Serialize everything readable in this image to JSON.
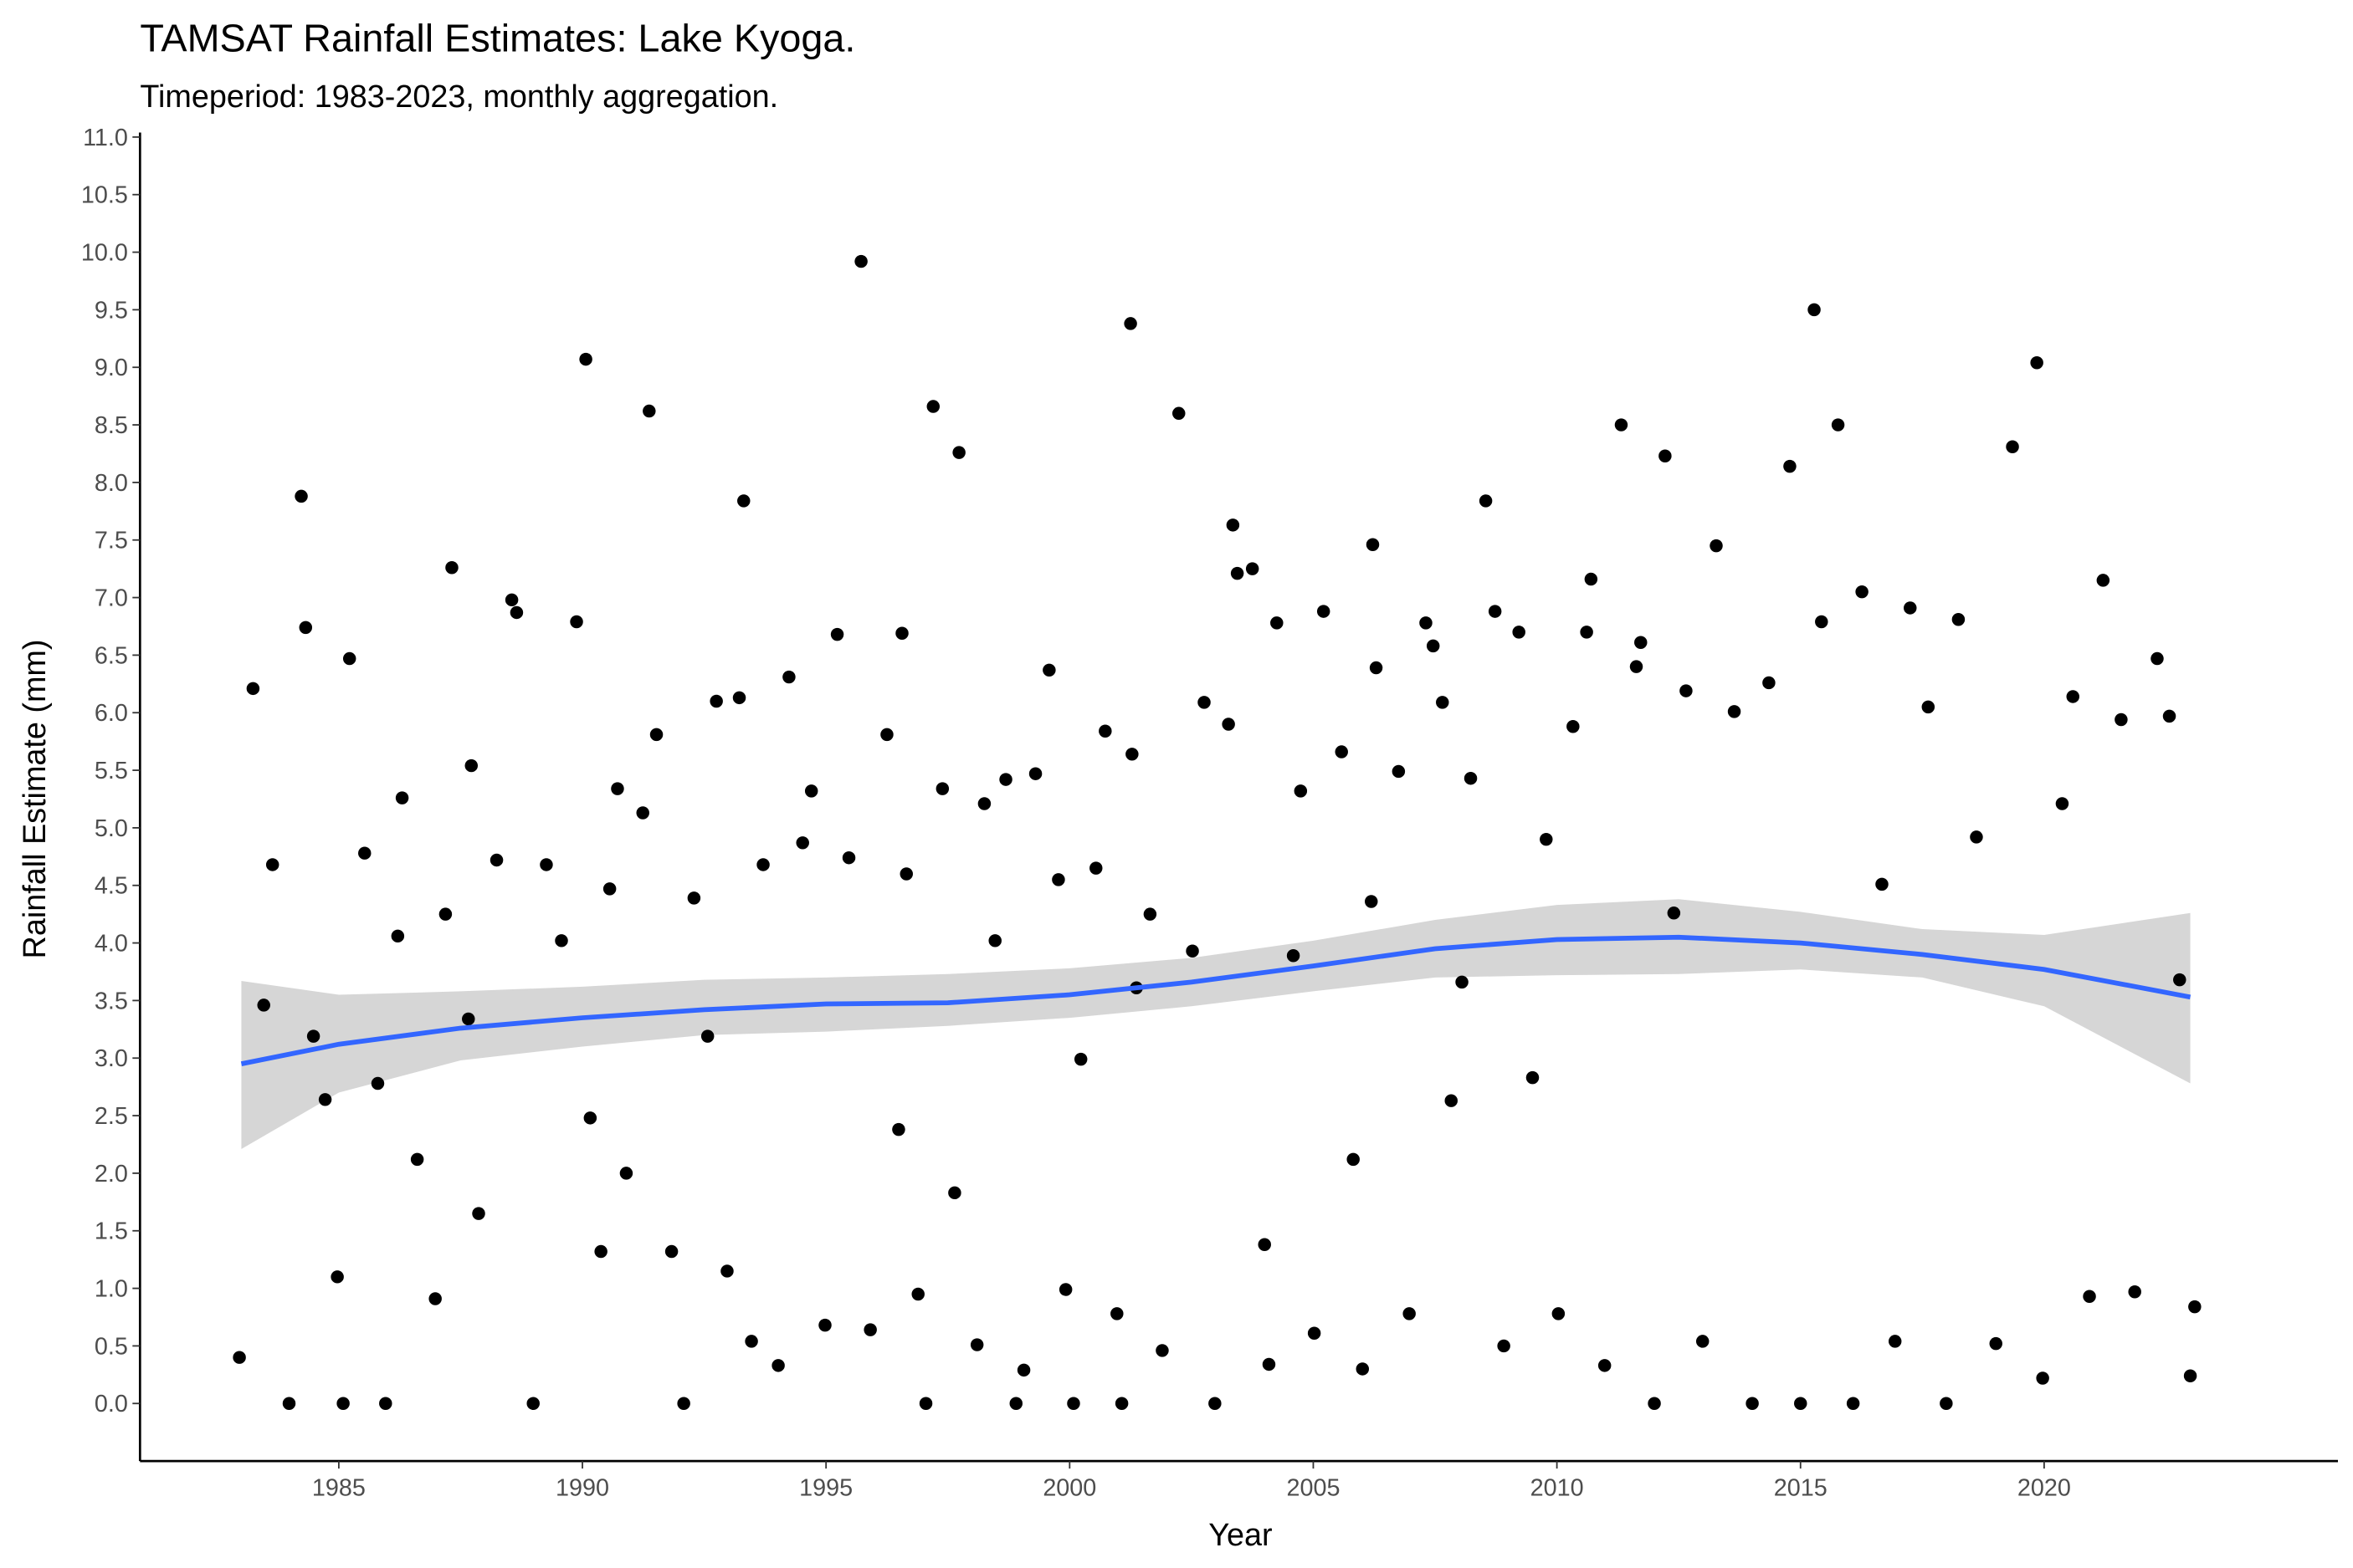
{
  "chart_data": {
    "type": "scatter",
    "title": "TAMSAT Rainfall Estimates: Lake Kyoga.",
    "subtitle": "Timeperiod: 1983-2023, monthly aggregation.",
    "x_label": "Year",
    "y_label": "Rainfall Estimate (mm)",
    "xlim": [
      1980.92,
      2026.03
    ],
    "ylim": [
      -0.5,
      11.0
    ],
    "xticks": [
      1985,
      1990,
      1995,
      2000,
      2005,
      2010,
      2015,
      2020
    ],
    "yticks": [
      {
        "value": 0,
        "label": "0.0"
      },
      0.5,
      {
        "value": 1,
        "label": "1.0"
      },
      1.5,
      {
        "value": 2,
        "label": "2.0"
      },
      2.5,
      {
        "value": 3,
        "label": "3.0"
      },
      3.5,
      {
        "value": 4,
        "label": "4.0"
      },
      4.5,
      {
        "value": 5,
        "label": "5.0"
      },
      5.5,
      {
        "value": 6,
        "label": "6.0"
      },
      6.5,
      {
        "value": 7,
        "label": "7.0"
      },
      7.5,
      {
        "value": 8,
        "label": "8.0"
      },
      8.5,
      {
        "value": 9,
        "label": "9.0"
      },
      9.5,
      {
        "value": 10,
        "label": "10.0"
      },
      10.5,
      {
        "value": 11,
        "label": "11.0"
      }
    ],
    "grid": false,
    "series": [
      {
        "color": "#000000",
        "x": [
          1982.96,
          1983.24,
          1983.46,
          1983.64,
          1983.98,
          1984.23,
          1984.32,
          1984.48,
          1984.72,
          1984.97,
          1985.09,
          1985.22,
          1985.53,
          1985.8,
          1985.96,
          1986.21,
          1986.3,
          1986.61,
          1986.98,
          1987.19,
          1987.32,
          1987.66,
          1987.72,
          1987.87,
          1988.24,
          1988.55,
          1988.65,
          1988.99,
          1989.26,
          1989.57,
          1989.88,
          1990.07,
          1990.16,
          1990.38,
          1990.56,
          1990.72,
          1990.9,
          1991.24,
          1991.37,
          1991.52,
          1991.83,
          1992.08,
          1992.29,
          1992.57,
          1992.75,
          1992.97,
          1993.22,
          1993.31,
          1993.47,
          1993.71,
          1994.02,
          1994.24,
          1994.52,
          1994.7,
          1994.98,
          1995.23,
          1995.47,
          1995.72,
          1995.91,
          1996.25,
          1996.49,
          1996.56,
          1996.65,
          1996.89,
          1997.05,
          1997.2,
          1997.39,
          1997.64,
          1997.73,
          1998.1,
          1998.25,
          1998.47,
          1998.69,
          1998.9,
          1999.06,
          1999.3,
          1999.58,
          1999.77,
          1999.92,
          2000.08,
          2000.23,
          2000.54,
          2000.73,
          2000.97,
          2001.07,
          2001.28,
          2001.37,
          2001.25,
          2001.65,
          2001.9,
          2002.24,
          2002.52,
          2002.76,
          2002.98,
          2003.26,
          2003.35,
          2003.44,
          2003.75,
          2004.0,
          2004.09,
          2004.25,
          2004.59,
          2004.74,
          2005.02,
          2005.21,
          2005.58,
          2005.82,
          2006.01,
          2006.19,
          2006.29,
          2006.22,
          2006.75,
          2006.97,
          2007.31,
          2007.46,
          2007.65,
          2007.83,
          2008.05,
          2008.23,
          2008.54,
          2008.73,
          2008.91,
          2009.22,
          2009.5,
          2009.78,
          2010.03,
          2010.33,
          2010.61,
          2010.7,
          2010.98,
          2011.32,
          2011.63,
          2011.72,
          2012.0,
          2012.22,
          2012.4,
          2012.65,
          2012.99,
          2013.27,
          2013.64,
          2014.01,
          2014.35,
          2014.78,
          2015.0,
          2015.28,
          2015.43,
          2015.77,
          2016.08,
          2016.26,
          2016.67,
          2016.94,
          2017.25,
          2017.62,
          2017.99,
          2018.24,
          2018.61,
          2019.01,
          2019.35,
          2019.85,
          2019.97,
          2020.37,
          2020.59,
          2020.93,
          2021.21,
          2021.58,
          2021.86,
          2022.32,
          2022.57,
          2022.78,
          2023.0,
          2023.09
        ],
        "values": [
          0.4,
          6.21,
          3.46,
          4.68,
          0,
          7.88,
          6.74,
          3.19,
          2.64,
          1.1,
          0,
          6.47,
          4.78,
          2.78,
          0,
          4.06,
          5.26,
          2.12,
          0.91,
          4.25,
          7.26,
          3.34,
          5.54,
          1.65,
          4.72,
          6.98,
          6.87,
          0,
          4.68,
          4.02,
          6.79,
          9.07,
          2.48,
          1.32,
          4.47,
          5.34,
          2.0,
          5.13,
          8.62,
          5.81,
          1.32,
          0,
          4.39,
          3.19,
          6.1,
          1.15,
          6.13,
          7.84,
          0.54,
          4.68,
          0.33,
          6.31,
          4.87,
          5.32,
          0.68,
          6.68,
          4.74,
          9.92,
          0.64,
          5.81,
          2.38,
          6.69,
          4.6,
          0.95,
          0,
          8.66,
          5.34,
          1.83,
          8.26,
          0.51,
          5.21,
          4.02,
          5.42,
          0,
          0.29,
          5.47,
          6.37,
          4.55,
          0.99,
          0,
          2.99,
          4.65,
          5.84,
          0.78,
          0,
          5.64,
          3.61,
          9.38,
          4.25,
          0.46,
          8.6,
          3.93,
          6.09,
          0,
          5.9,
          7.63,
          7.21,
          7.25,
          1.38,
          0.34,
          6.78,
          3.89,
          5.32,
          0.61,
          6.88,
          5.66,
          2.12,
          0.3,
          4.36,
          6.39,
          7.46,
          5.49,
          0.78,
          6.78,
          6.58,
          6.09,
          2.63,
          3.66,
          5.43,
          7.84,
          6.88,
          0.5,
          6.7,
          2.83,
          4.9,
          0.78,
          5.88,
          6.7,
          7.16,
          0.33,
          8.5,
          6.4,
          6.61,
          0,
          8.23,
          4.26,
          6.19,
          0.54,
          7.45,
          6.01,
          0,
          6.26,
          8.14,
          0,
          9.5,
          6.79,
          8.5,
          0,
          7.05,
          4.51,
          0.54,
          6.91,
          6.05,
          0,
          6.81,
          4.92,
          0.52,
          8.31,
          9.04,
          0.22,
          5.21,
          6.14,
          0.93,
          7.15,
          5.94,
          0.97,
          6.47,
          5.97,
          3.68,
          0.24,
          0.84
        ]
      }
    ],
    "trend": {
      "color": "#3366ff",
      "band_color": "#d6d6d6",
      "x": [
        1983,
        1985,
        1987.5,
        1990,
        1992.5,
        1995,
        1997.5,
        2000,
        2002.5,
        2005,
        2007.5,
        2010,
        2012.5,
        2015,
        2017.5,
        2020,
        2023
      ],
      "values": [
        2.95,
        3.12,
        3.26,
        3.35,
        3.42,
        3.47,
        3.48,
        3.55,
        3.66,
        3.8,
        3.95,
        4.03,
        4.05,
        4.0,
        3.9,
        3.77,
        3.53
      ],
      "lower": [
        2.21,
        2.7,
        2.98,
        3.1,
        3.2,
        3.23,
        3.28,
        3.35,
        3.45,
        3.58,
        3.7,
        3.72,
        3.73,
        3.77,
        3.7,
        3.45,
        2.78
      ],
      "upper": [
        3.67,
        3.55,
        3.58,
        3.62,
        3.68,
        3.7,
        3.73,
        3.78,
        3.87,
        4.02,
        4.2,
        4.33,
        4.38,
        4.27,
        4.12,
        4.07,
        4.26
      ]
    }
  }
}
